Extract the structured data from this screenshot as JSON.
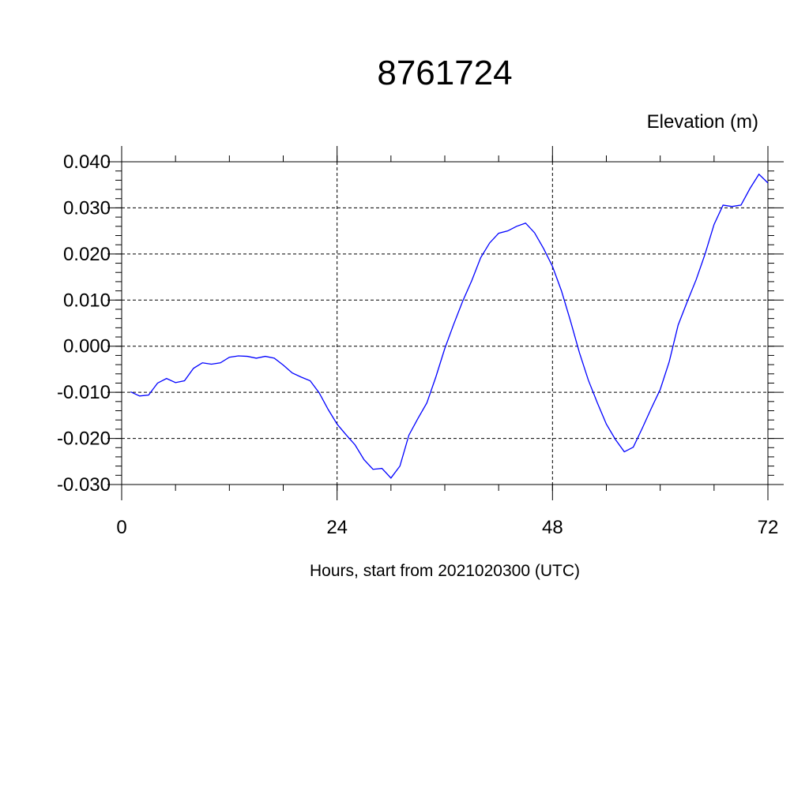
{
  "chart_data": {
    "type": "line",
    "title": "8761724",
    "y_label": "Elevation (m)",
    "x_label": "Hours, start from 2021020300 (UTC)",
    "x": [
      1,
      2,
      3,
      4,
      5,
      6,
      7,
      8,
      9,
      10,
      11,
      12,
      13,
      14,
      15,
      16,
      17,
      18,
      19,
      20,
      21,
      22,
      23,
      24,
      25,
      26,
      27,
      28,
      29,
      30,
      31,
      32,
      33,
      34,
      35,
      36,
      37,
      38,
      39,
      40,
      41,
      42,
      43,
      44,
      45,
      46,
      47,
      48,
      49,
      50,
      51,
      52,
      53,
      54,
      55,
      56,
      57,
      58,
      59,
      60,
      61,
      62,
      63,
      64,
      65,
      66,
      67,
      68,
      69,
      70,
      71,
      72
    ],
    "series": [
      {
        "color": "#0000ff",
        "values": [
          -0.0099,
          -0.0108,
          -0.0106,
          -0.008,
          -0.007,
          -0.0079,
          -0.0075,
          -0.0048,
          -0.0036,
          -0.0039,
          -0.0036,
          -0.0024,
          -0.0021,
          -0.0022,
          -0.0026,
          -0.0022,
          -0.0026,
          -0.0041,
          -0.0058,
          -0.0067,
          -0.0075,
          -0.0101,
          -0.0137,
          -0.0169,
          -0.0192,
          -0.0214,
          -0.0246,
          -0.0267,
          -0.0265,
          -0.0286,
          -0.026,
          -0.0193,
          -0.0157,
          -0.0123,
          -0.0067,
          -0.0005,
          0.0048,
          0.0098,
          0.0142,
          0.0192,
          0.0224,
          0.0245,
          0.025,
          0.026,
          0.0267,
          0.0246,
          0.0212,
          0.0173,
          0.012,
          0.0055,
          -0.0014,
          -0.0074,
          -0.0123,
          -0.0169,
          -0.0202,
          -0.0229,
          -0.0219,
          -0.0178,
          -0.0135,
          -0.0094,
          -0.0034,
          0.0046,
          0.0096,
          0.0144,
          0.02,
          0.0264,
          0.0306,
          0.0303,
          0.0306,
          0.0342,
          0.0373,
          0.0354
        ]
      }
    ],
    "xlim": [
      0,
      72
    ],
    "xticks": [
      0,
      24,
      48,
      72
    ],
    "ylim": [
      -0.03,
      0.04
    ],
    "yticks": [
      {
        "value": -0.03,
        "label": "-0.030"
      },
      {
        "value": -0.02,
        "label": "-0.020"
      },
      {
        "value": -0.01,
        "label": "-0.010"
      },
      {
        "value": 0,
        "label": "0.000"
      },
      {
        "value": 0.01,
        "label": "0.010"
      },
      {
        "value": 0.02,
        "label": "0.020"
      },
      {
        "value": 0.03,
        "label": "0.030"
      },
      {
        "value": 0.04,
        "label": "0.040"
      }
    ],
    "grid": true
  }
}
